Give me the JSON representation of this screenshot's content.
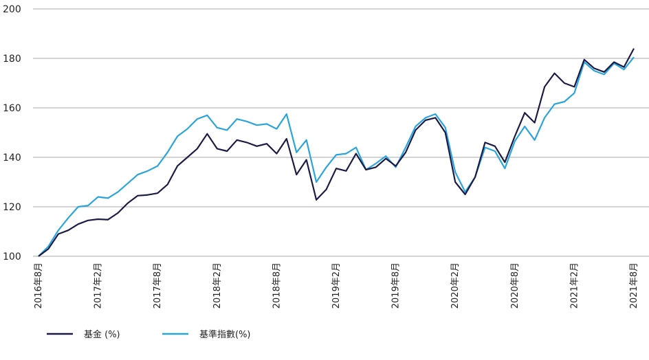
{
  "chart_data": {
    "type": "line",
    "title": "",
    "xlabel": "",
    "ylabel": "",
    "ylim": [
      100,
      200
    ],
    "yticks": [
      100,
      120,
      140,
      160,
      180,
      200
    ],
    "grid": "horizontal",
    "legend_position": "bottom-left",
    "x_tick_labels": [
      "2016年8月",
      "2017年2月",
      "2017年8月",
      "2018年2月",
      "2018年8月",
      "2019年2月",
      "2019年8月",
      "2020年2月",
      "2020年8月",
      "2021年2月",
      "2021年8月"
    ],
    "x_tick_index_step": 6,
    "series": [
      {
        "name": "基金 (%)",
        "color": "#1b1b45",
        "values": [
          100,
          103,
          109,
          110.5,
          113,
          114.5,
          115,
          114.8,
          117.5,
          121.5,
          124.5,
          124.8,
          125.5,
          129,
          136.5,
          140,
          143.5,
          149.5,
          143.5,
          142.5,
          147,
          146,
          144.5,
          145.5,
          141.5,
          147.5,
          133,
          139,
          122.8,
          127,
          135.5,
          134.5,
          141.5,
          135,
          136,
          139.5,
          136.5,
          142,
          151,
          155,
          156,
          150,
          130,
          125,
          132,
          146,
          144.5,
          138,
          148.5,
          158,
          154,
          168.5,
          174,
          170,
          168.5,
          179.5,
          176,
          174.5,
          178.5,
          176.5,
          184
        ]
      },
      {
        "name": "基準指數(%)",
        "color": "#2aa4dc",
        "values": [
          100,
          104,
          110.5,
          115.5,
          120,
          120.5,
          124,
          123.5,
          126,
          129.5,
          133,
          134.5,
          136.5,
          142,
          148.5,
          151.5,
          155.5,
          157,
          152,
          151,
          155.5,
          154.5,
          153,
          153.5,
          151.5,
          157.5,
          142,
          147,
          130,
          136,
          141,
          141.5,
          144,
          135,
          137.5,
          140.5,
          136,
          144,
          152.5,
          156,
          157.5,
          152,
          134,
          126,
          132,
          144,
          142.5,
          135.5,
          146.5,
          152.5,
          147,
          156,
          161.5,
          162.5,
          166,
          178.5,
          175,
          173.5,
          178,
          175.5,
          180.5
        ]
      }
    ]
  }
}
